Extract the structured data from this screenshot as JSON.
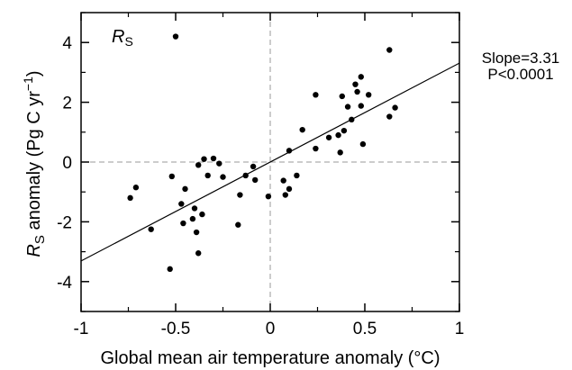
{
  "chart_data": {
    "type": "scatter",
    "panel_label": {
      "main": "R",
      "sub": "S"
    },
    "xlabel": "Global mean air temperature anomaly (°C)",
    "ylabel": {
      "prefix": "R",
      "sub": "S",
      "text": " anomaly (Pg C yr",
      "sup": "−1",
      "suffix": ")"
    },
    "xlim": [
      -1,
      1
    ],
    "ylim": [
      -5,
      5
    ],
    "xticks": [
      -1,
      -0.5,
      0,
      0.5,
      1
    ],
    "xtick_labels": [
      "-1",
      "-0.5",
      "0",
      "0.5",
      "1"
    ],
    "yticks": [
      -4,
      -2,
      0,
      2,
      4
    ],
    "ytick_labels": [
      "-4",
      "-2",
      "0",
      "2",
      "4"
    ],
    "grid": false,
    "reference_lines": {
      "x": 0,
      "y": 0,
      "style": "dashed",
      "color": "#999999"
    },
    "regression": {
      "slope": 3.31,
      "intercept": 0.0
    },
    "stats": {
      "slope_text": "Slope=3.31",
      "p_text": "P<0.0001"
    },
    "marker_color": "#000000",
    "line_color": "#000000",
    "points": [
      [
        -0.74,
        -1.2
      ],
      [
        -0.71,
        -0.85
      ],
      [
        -0.63,
        -2.25
      ],
      [
        -0.53,
        -3.58
      ],
      [
        -0.52,
        -0.48
      ],
      [
        -0.5,
        4.2
      ],
      [
        -0.47,
        -1.4
      ],
      [
        -0.46,
        -2.05
      ],
      [
        -0.45,
        -0.9
      ],
      [
        -0.41,
        -1.9
      ],
      [
        -0.4,
        -1.55
      ],
      [
        -0.39,
        -2.35
      ],
      [
        -0.38,
        -0.1
      ],
      [
        -0.38,
        -3.05
      ],
      [
        -0.36,
        -1.75
      ],
      [
        -0.35,
        0.1
      ],
      [
        -0.33,
        -0.45
      ],
      [
        -0.3,
        0.12
      ],
      [
        -0.27,
        -0.05
      ],
      [
        -0.25,
        -0.5
      ],
      [
        -0.17,
        -2.1
      ],
      [
        -0.16,
        -1.1
      ],
      [
        -0.13,
        -0.45
      ],
      [
        -0.09,
        -0.15
      ],
      [
        -0.08,
        -0.6
      ],
      [
        -0.01,
        -1.15
      ],
      [
        0.07,
        -0.62
      ],
      [
        0.08,
        -1.1
      ],
      [
        0.1,
        -0.9
      ],
      [
        0.1,
        0.38
      ],
      [
        0.14,
        -0.45
      ],
      [
        0.17,
        1.08
      ],
      [
        0.24,
        0.45
      ],
      [
        0.24,
        2.25
      ],
      [
        0.31,
        0.82
      ],
      [
        0.36,
        0.9
      ],
      [
        0.37,
        0.32
      ],
      [
        0.38,
        2.2
      ],
      [
        0.39,
        1.05
      ],
      [
        0.41,
        1.85
      ],
      [
        0.43,
        1.42
      ],
      [
        0.45,
        2.6
      ],
      [
        0.46,
        2.35
      ],
      [
        0.48,
        2.85
      ],
      [
        0.48,
        1.88
      ],
      [
        0.49,
        0.6
      ],
      [
        0.52,
        2.25
      ],
      [
        0.63,
        3.75
      ],
      [
        0.63,
        1.52
      ],
      [
        0.66,
        1.82
      ]
    ]
  }
}
